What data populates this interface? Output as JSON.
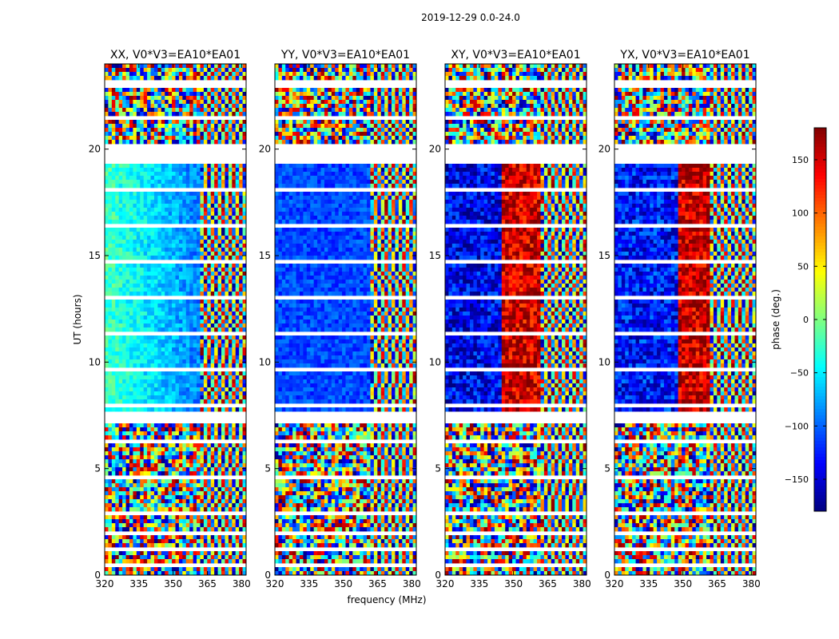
{
  "chart_data": {
    "type": "heatmap",
    "suptitle": "2019-12-29 0.0-24.0",
    "xlabel": "frequency (MHz)",
    "ylabel": "UT (hours)",
    "xlim": [
      320,
      382
    ],
    "ylim": [
      0,
      24
    ],
    "x_ticks": [
      320,
      335,
      350,
      365,
      380
    ],
    "y_ticks": [
      0,
      5,
      10,
      15,
      20
    ],
    "panels": [
      {
        "title": "XX, V0*V3=EA10*EA01",
        "pol": "XX"
      },
      {
        "title": "YY, V0*V3=EA10*EA01",
        "pol": "YY"
      },
      {
        "title": "XY, V0*V3=EA10*EA01",
        "pol": "XY"
      },
      {
        "title": "YX, V0*V3=EA10*EA01",
        "pol": "YX"
      }
    ],
    "colorbar": {
      "label": "phase (deg.)",
      "range": [
        -180,
        180
      ],
      "ticks": [
        150,
        100,
        50,
        0,
        -50,
        -100,
        -150
      ],
      "colormap": "jet"
    },
    "flagged_bands_ut": [
      [
        0.3,
        0.5
      ],
      [
        1.9,
        2.1
      ],
      [
        7.2,
        7.6
      ],
      [
        19.3,
        20.3
      ],
      [
        22.8,
        23.1
      ]
    ]
  }
}
